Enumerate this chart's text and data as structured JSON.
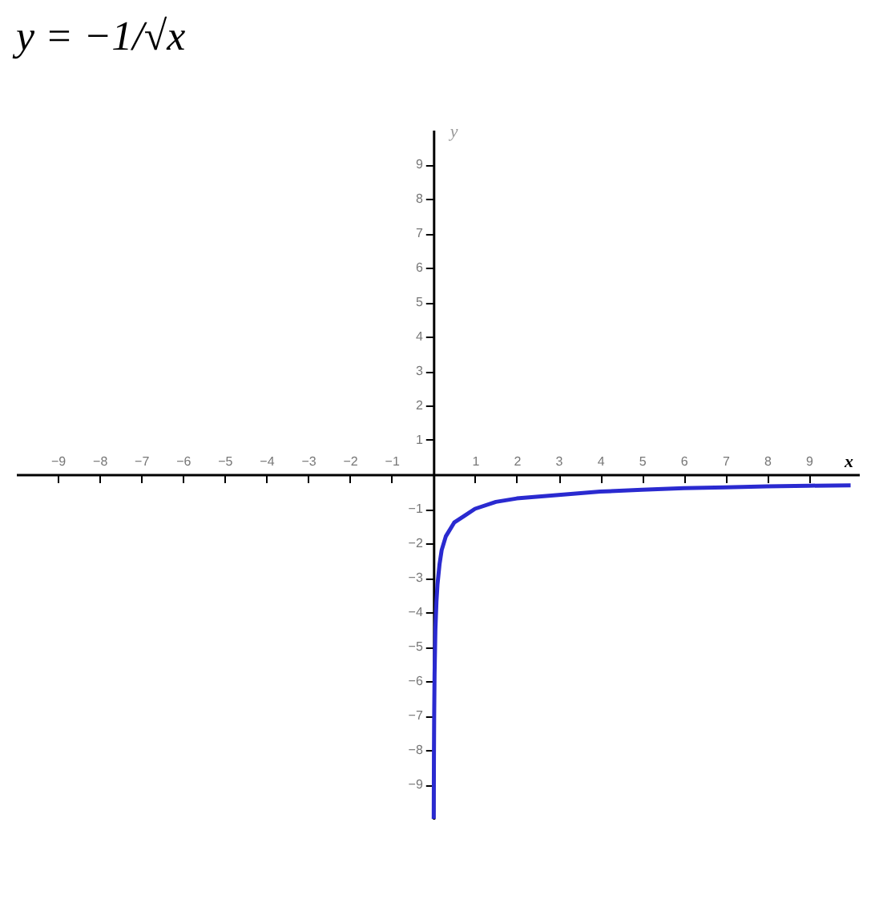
{
  "chart_data": {
    "type": "line",
    "title": "y = −1/√x",
    "xlabel": "x",
    "ylabel": "y",
    "xlim": [
      -10,
      10.2
    ],
    "ylim": [
      -10,
      10
    ],
    "xticks": [
      -9,
      -8,
      -7,
      -6,
      -5,
      -4,
      -3,
      -2,
      -1,
      1,
      2,
      3,
      4,
      5,
      6,
      7,
      8,
      9
    ],
    "yticks": [
      -9,
      -8,
      -7,
      -6,
      -5,
      -4,
      -3,
      -2,
      -1,
      1,
      2,
      3,
      4,
      5,
      6,
      7,
      8,
      9
    ],
    "grid": false,
    "marker": "none",
    "line_style": "solid",
    "series": [
      {
        "color": "#2a2ad0",
        "x": [
          0.01,
          0.015,
          0.02,
          0.03,
          0.05,
          0.075,
          0.1,
          0.15,
          0.2,
          0.3,
          0.5,
          0.75,
          1,
          1.5,
          2,
          3,
          4,
          5,
          6,
          7,
          8,
          9,
          10
        ],
        "values": [
          -10,
          -8.2,
          -7.1,
          -5.8,
          -4.5,
          -3.7,
          -3.2,
          -2.6,
          -2.2,
          -1.8,
          -1.4,
          -1.2,
          -1,
          -0.8,
          -0.7,
          -0.6,
          -0.5,
          -0.45,
          -0.4,
          -0.38,
          -0.35,
          -0.33,
          -0.32
        ]
      }
    ]
  }
}
